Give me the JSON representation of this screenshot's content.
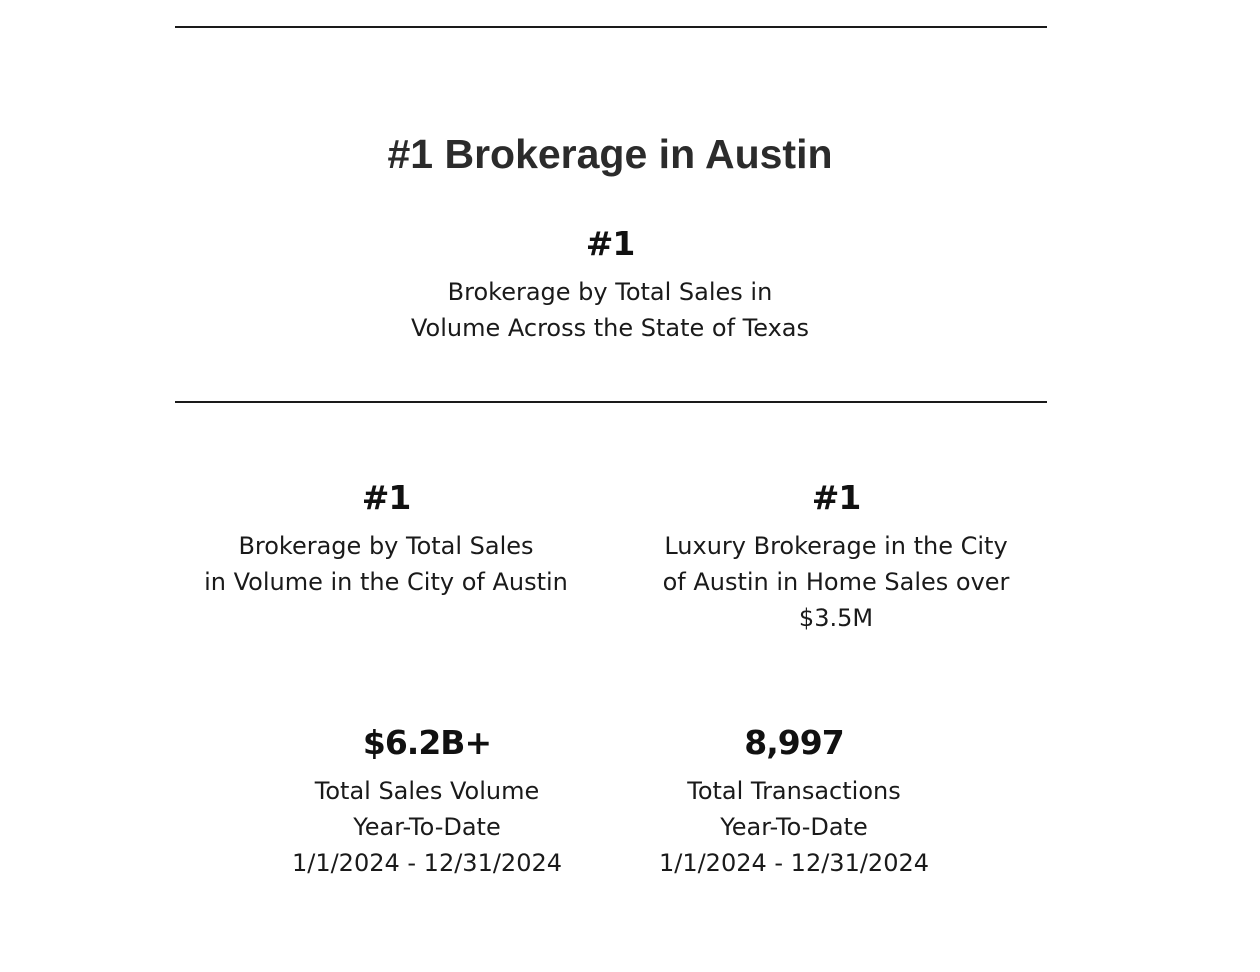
{
  "heading": "#1 Brokerage in Austin",
  "stats": {
    "texas": {
      "value": "#1",
      "description": "Brokerage by Total Sales in\nVolume Across the State of Texas"
    },
    "austin": {
      "value": "#1",
      "description": "Brokerage by Total Sales\nin Volume in the City of Austin"
    },
    "luxury": {
      "value": "#1",
      "description": "Luxury Brokerage in the City\nof Austin in Home Sales over\n$3.5M"
    },
    "volume": {
      "value": "$6.2B+",
      "description": "Total Sales Volume\nYear-To-Date\n1/1/2024 - 12/31/2024"
    },
    "transactions": {
      "value": "8,997",
      "description": "Total Transactions\nYear-To-Date\n1/1/2024 - 12/31/2024"
    }
  }
}
